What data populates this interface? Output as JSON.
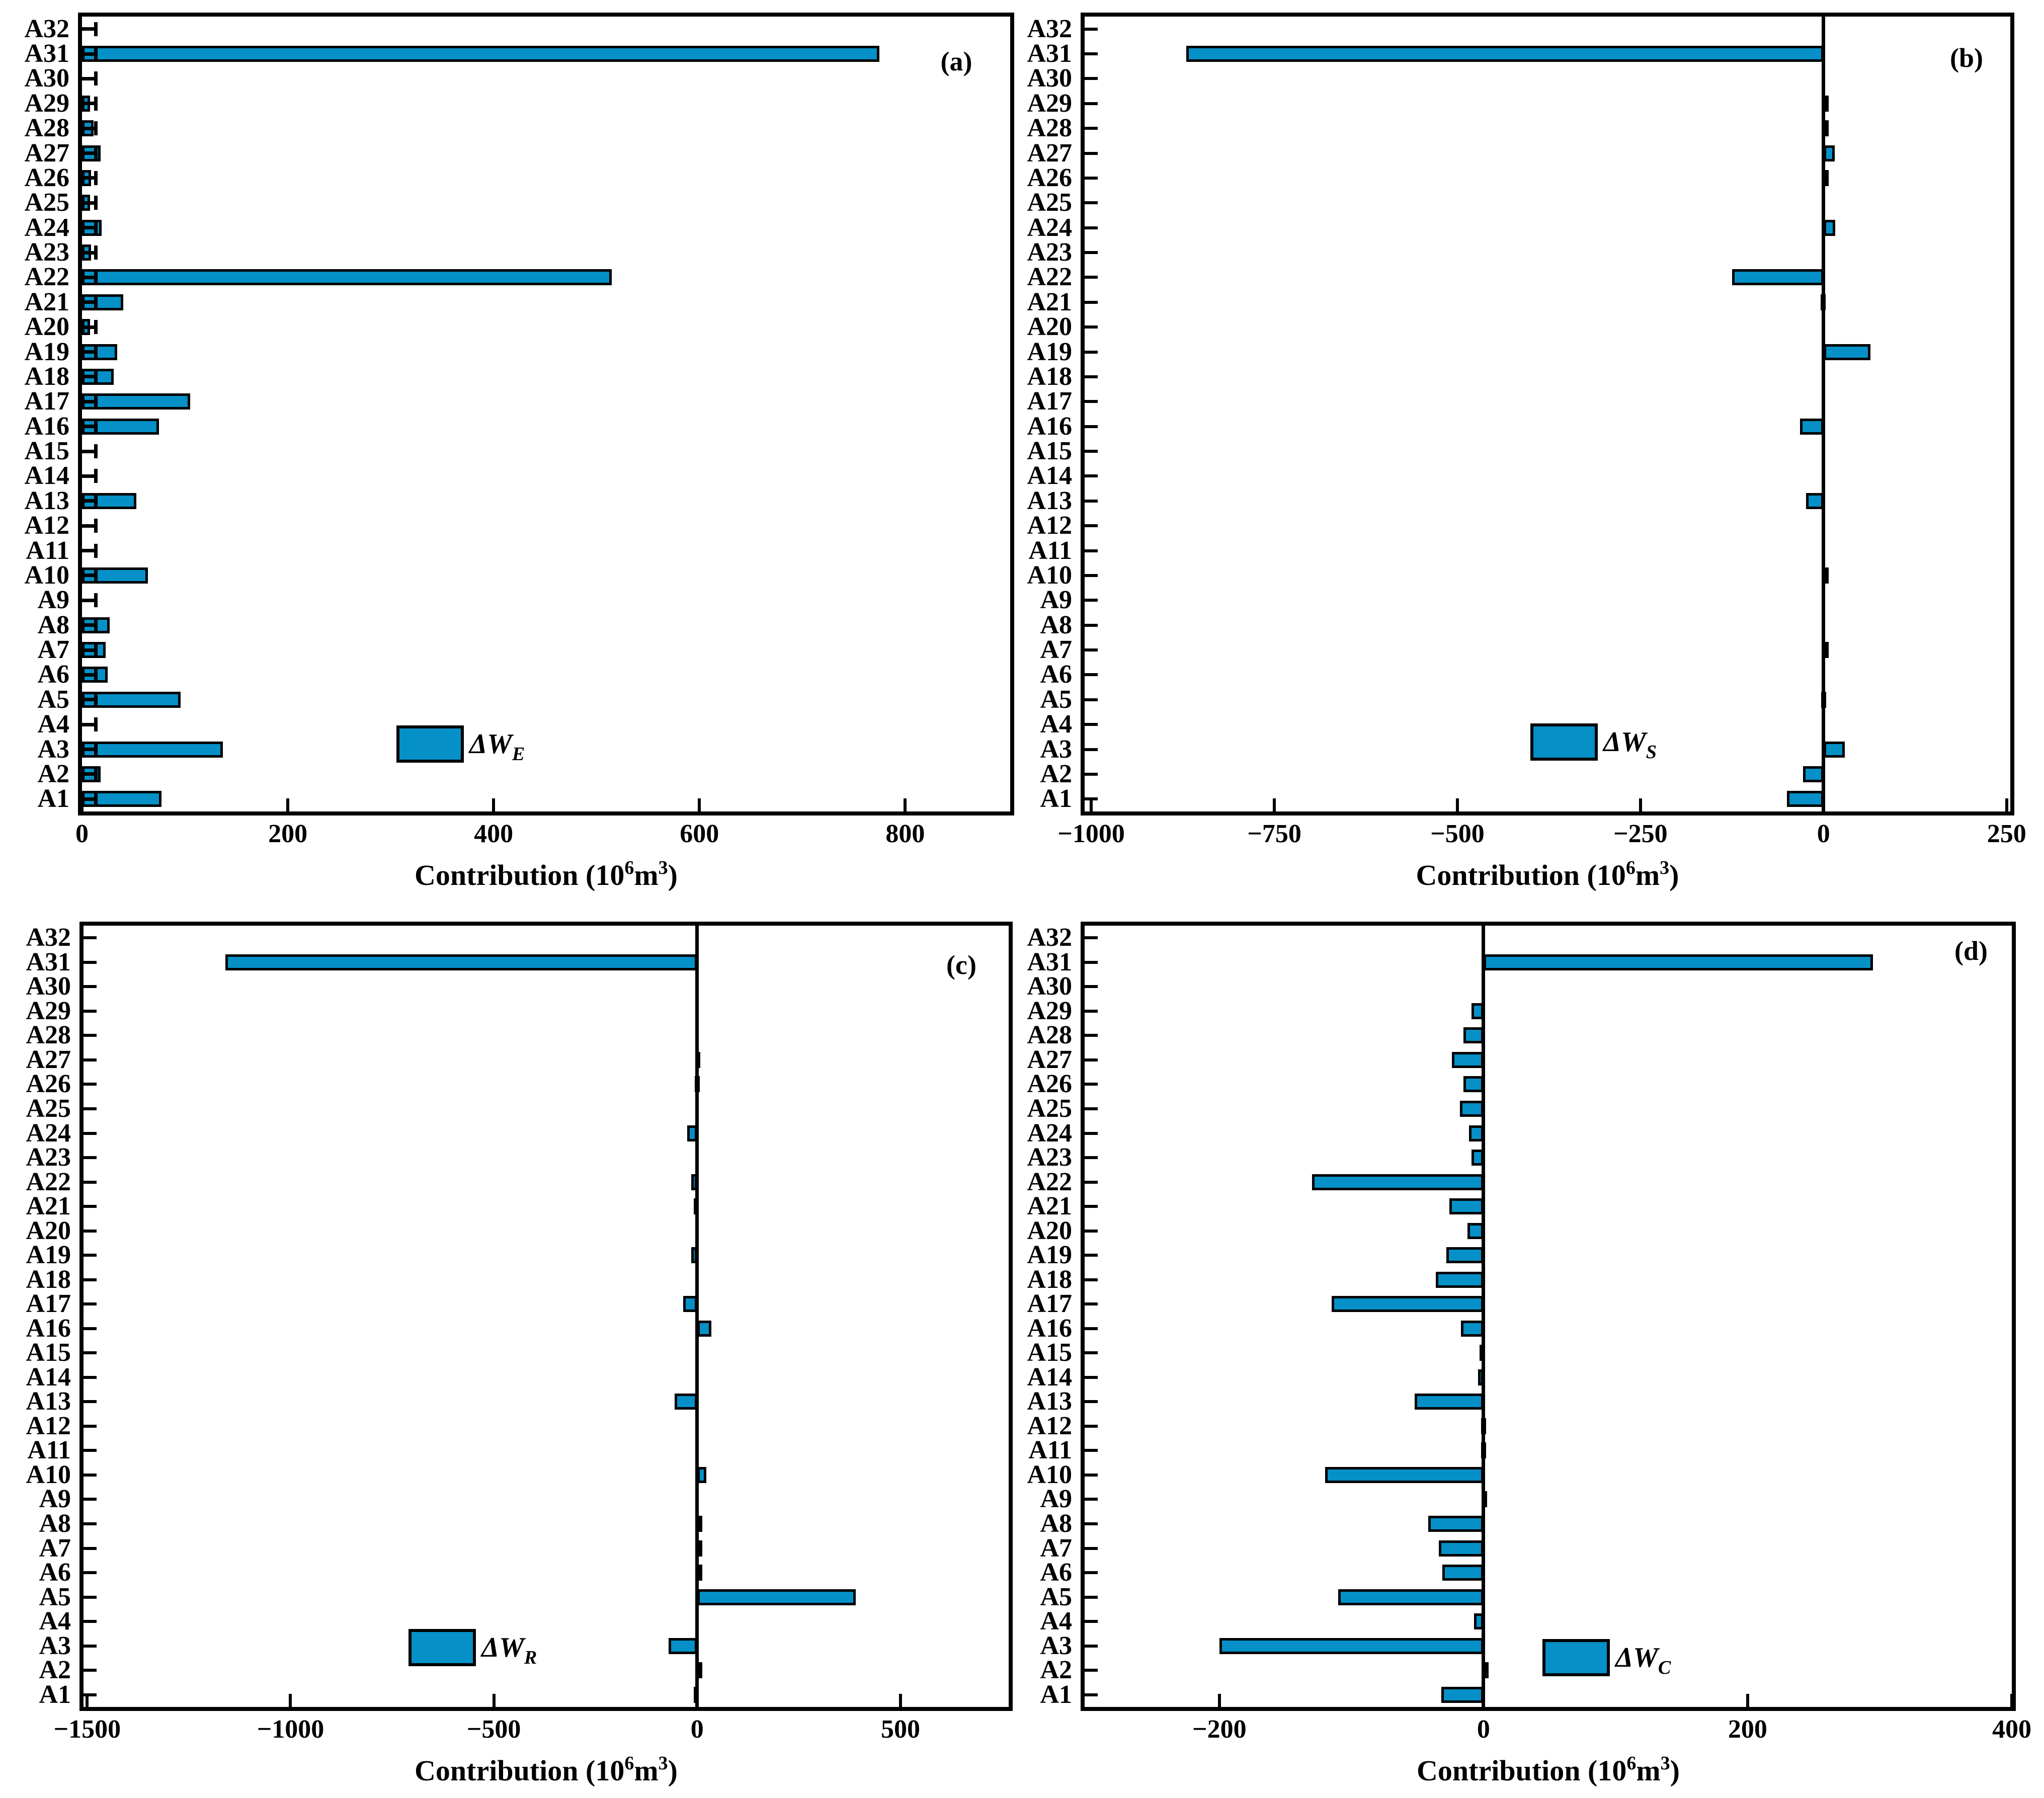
{
  "figure_background": "#ffffff",
  "colors": {
    "bar_fill": "#0590c8",
    "bar_edge": "#000000",
    "axis": "#000000",
    "text": "#000000"
  },
  "xlabel_parts": {
    "pre": "Contribution (10",
    "sup1": "6",
    "mid": "m",
    "sup2": "3",
    "post": ")"
  },
  "categories_top_to_bottom": [
    "A32",
    "A31",
    "A30",
    "A29",
    "A28",
    "A27",
    "A26",
    "A25",
    "A24",
    "A23",
    "A22",
    "A21",
    "A20",
    "A19",
    "A18",
    "A17",
    "A16",
    "A15",
    "A14",
    "A13",
    "A12",
    "A11",
    "A10",
    "A9",
    "A8",
    "A7",
    "A6",
    "A5",
    "A4",
    "A3",
    "A2",
    "A1"
  ],
  "chart_data": [
    {
      "type": "bar",
      "orientation": "horizontal",
      "panel_label": "(a)",
      "legend": {
        "main": "ΔW",
        "sub": "E"
      },
      "xlabel": "Contribution (10^6 m^3)",
      "xlim": [
        0,
        902
      ],
      "xticks": [
        0,
        200,
        400,
        600,
        800
      ],
      "categories_top_to_bottom": [
        "A32",
        "A31",
        "A30",
        "A29",
        "A28",
        "A27",
        "A26",
        "A25",
        "A24",
        "A23",
        "A22",
        "A21",
        "A20",
        "A19",
        "A18",
        "A17",
        "A16",
        "A15",
        "A14",
        "A13",
        "A12",
        "A11",
        "A10",
        "A9",
        "A8",
        "A7",
        "A6",
        "A5",
        "A4",
        "A3",
        "A2",
        "A1"
      ],
      "values": [
        0,
        775,
        0,
        8,
        11,
        18,
        9,
        8,
        19,
        9,
        515,
        40,
        8,
        34,
        31,
        105,
        75,
        0,
        0,
        53,
        0,
        0,
        64,
        0,
        27,
        23,
        25,
        96,
        0,
        137,
        18,
        77
      ],
      "error_whisker_to": 13,
      "grid": false,
      "legend_frame": false
    },
    {
      "type": "bar",
      "orientation": "horizontal",
      "panel_label": "(b)",
      "legend": {
        "main": "ΔW",
        "sub": "S"
      },
      "xlabel": "Contribution (10^6 m^3)",
      "xlim": [
        -1009,
        255
      ],
      "xticks": [
        -1000,
        -750,
        -500,
        -250,
        0,
        250
      ],
      "categories_top_to_bottom": [
        "A32",
        "A31",
        "A30",
        "A29",
        "A28",
        "A27",
        "A26",
        "A25",
        "A24",
        "A23",
        "A22",
        "A21",
        "A20",
        "A19",
        "A18",
        "A17",
        "A16",
        "A15",
        "A14",
        "A13",
        "A12",
        "A11",
        "A10",
        "A9",
        "A8",
        "A7",
        "A6",
        "A5",
        "A4",
        "A3",
        "A2",
        "A1"
      ],
      "values": [
        0,
        -870,
        0,
        3,
        3,
        15,
        3,
        0,
        16,
        0,
        -125,
        -4,
        0,
        64,
        0,
        0,
        -32,
        0,
        0,
        -24,
        0,
        0,
        7,
        0,
        0,
        6,
        0,
        -3,
        0,
        29,
        -28,
        -50
      ],
      "error_whisker_to": null,
      "grid": false,
      "legend_frame": false
    },
    {
      "type": "bar",
      "orientation": "horizontal",
      "panel_label": "(c)",
      "legend": {
        "main": "ΔW",
        "sub": "R"
      },
      "xlabel": "Contribution (10^6 m^3)",
      "xlim": [
        -1509,
        766
      ],
      "xticks": [
        -1500,
        -1000,
        -500,
        0,
        500
      ],
      "categories_top_to_bottom": [
        "A32",
        "A31",
        "A30",
        "A29",
        "A28",
        "A27",
        "A26",
        "A25",
        "A24",
        "A23",
        "A22",
        "A21",
        "A20",
        "A19",
        "A18",
        "A17",
        "A16",
        "A15",
        "A14",
        "A13",
        "A12",
        "A11",
        "A10",
        "A9",
        "A8",
        "A7",
        "A6",
        "A5",
        "A4",
        "A3",
        "A2",
        "A1"
      ],
      "values": [
        0,
        -1160,
        0,
        0,
        0,
        -5,
        -6,
        0,
        -25,
        0,
        -15,
        -8,
        0,
        -15,
        0,
        -35,
        35,
        0,
        0,
        -55,
        0,
        0,
        22,
        0,
        2,
        10,
        10,
        390,
        0,
        -70,
        12,
        -8
      ],
      "error_whisker_to": null,
      "grid": false,
      "legend_frame": false
    },
    {
      "type": "bar",
      "orientation": "horizontal",
      "panel_label": "(d)",
      "legend": {
        "main": "ΔW",
        "sub": "C"
      },
      "xlabel": "Contribution (10^6 m^3)",
      "xlim": [
        -302,
        400
      ],
      "xticks": [
        -200,
        0,
        200,
        400
      ],
      "categories_top_to_bottom": [
        "A32",
        "A31",
        "A30",
        "A29",
        "A28",
        "A27",
        "A26",
        "A25",
        "A24",
        "A23",
        "A22",
        "A21",
        "A20",
        "A19",
        "A18",
        "A17",
        "A16",
        "A15",
        "A14",
        "A13",
        "A12",
        "A11",
        "A10",
        "A9",
        "A8",
        "A7",
        "A6",
        "A5",
        "A4",
        "A3",
        "A2",
        "A1"
      ],
      "values": [
        0,
        295,
        0,
        -9,
        -15,
        -24,
        -15,
        -18,
        -11,
        -9,
        -130,
        -26,
        -12,
        -28,
        -36,
        -115,
        -17,
        -3,
        -4,
        -52,
        -2,
        -2,
        -120,
        -1,
        -42,
        -34,
        -31,
        -110,
        -7,
        -200,
        3,
        -32
      ],
      "error_whisker_to": null,
      "grid": false,
      "legend_frame": false
    }
  ]
}
